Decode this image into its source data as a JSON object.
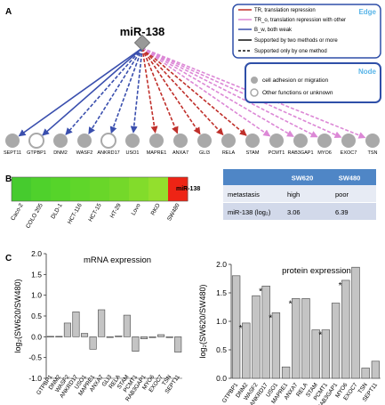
{
  "panel_labels": {
    "a": "A",
    "b": "B",
    "c": "C"
  },
  "network": {
    "mirna": "miR-138",
    "targets": [
      "SEPT11",
      "GTPBP1",
      "DNM2",
      "WASF2",
      "ANKRD17",
      "USO1",
      "MAPRE1",
      "ANXA7",
      "GLI3",
      "RELA",
      "STAM",
      "PCMT1",
      "RAB3GAP1",
      "MYO6",
      "EXOC7",
      "TSN"
    ],
    "edge_types": [
      "B_w",
      "B_w",
      "B_w",
      "B_w",
      "B_w",
      "B_w",
      "TR",
      "TR",
      "TR",
      "TR",
      "TR",
      "TR_o",
      "TR_o",
      "TR_o",
      "TR_o",
      "TR_o"
    ],
    "edge_support": [
      "two",
      "two",
      "one",
      "one",
      "one",
      "one",
      "one",
      "one",
      "one",
      "one",
      "one",
      "one",
      "one",
      "one",
      "one",
      "one"
    ],
    "node_types": [
      "cell",
      "other",
      "cell",
      "cell",
      "other",
      "cell",
      "cell",
      "cell",
      "cell",
      "cell",
      "cell",
      "cell",
      "cell",
      "cell",
      "cell",
      "cell"
    ],
    "edge_legend": {
      "title": "Edge",
      "items": [
        "TR, translation repression",
        "TR_o, translation repression with other",
        "B_w, both weak",
        "Supported by two methods or more",
        "Supported only by one method"
      ]
    },
    "node_legend": {
      "title": "Node",
      "items": [
        "cell adhesion or migration",
        "Other functions or unknown"
      ]
    }
  },
  "colors": {
    "tr": "#c0302b",
    "tr_o": "#dc88d6",
    "b_w": "#3a4fae",
    "legend_border": "#2f4fa8",
    "legend_title": "#58b4e8",
    "node_gray": "#a9a9a9",
    "mirna_node": "#999999",
    "table_header": "#4f86c6",
    "bar_fill": "#c4c4c4"
  },
  "heatmap": {
    "label": "miR-138",
    "cell_lines": [
      "Caco-2",
      "COLO 205",
      "DLD-1",
      "HCT-116",
      "HCT-15",
      "HT-29",
      "Lovo",
      "RKO",
      "SW480"
    ],
    "colors": [
      "#46cb2e",
      "#4fd12c",
      "#56d42a",
      "#5fd62a",
      "#69d629",
      "#74d82a",
      "#82dc2b",
      "#93df2d",
      "#ee2415"
    ]
  },
  "table": {
    "header": [
      "",
      "SW620",
      "SW480"
    ],
    "rows": [
      [
        "metastasis",
        "high",
        "poor"
      ],
      [
        "miR-138 (log₂)",
        "3.06",
        "6.39"
      ]
    ]
  },
  "chart_data": [
    {
      "type": "bar",
      "title": "mRNA expression",
      "ylabel": "log₂(SW620/SW480)",
      "ylim": [
        -1.0,
        2.0
      ],
      "yticks": [
        "-1.0",
        "-0.5",
        "0.0",
        "0.5",
        "1.0",
        "1.5",
        "2.0"
      ],
      "categories": [
        "GTPBP1",
        "DNM2",
        "WASF2",
        "ANKRD17",
        "USO1",
        "MAPRE1",
        "ANXA7",
        "GLI3",
        "RELA",
        "STAM",
        "PCMT1",
        "RAB3GAP1",
        "MYO6",
        "EXOC7",
        "TSN",
        "SEPT11"
      ],
      "values": [
        0.01,
        0.01,
        0.33,
        0.6,
        0.08,
        -0.3,
        0.65,
        0.0,
        0.02,
        0.52,
        -0.35,
        -0.05,
        -0.02,
        0.05,
        -0.02,
        -0.37
      ],
      "asterisks": []
    },
    {
      "type": "bar",
      "title": "protein expression",
      "ylabel": "log₂(SW620/SW480)",
      "ylim": [
        0.0,
        2.0
      ],
      "yticks": [
        "0.0",
        "0.5",
        "1.0",
        "1.5",
        "2.0"
      ],
      "categories": [
        "GTPBP1",
        "DNM2",
        "WASF2",
        "ANKRD17",
        "USO1",
        "MAPRE1",
        "ANXA7",
        "RELA",
        "STAM",
        "PCMT1",
        "RAB3GAP1",
        "MYO6",
        "EXOC7",
        "TSN",
        "SEPT11"
      ],
      "values": [
        1.8,
        0.97,
        1.45,
        1.62,
        1.15,
        0.2,
        1.4,
        1.4,
        0.85,
        0.85,
        1.32,
        1.72,
        1.95,
        0.18,
        0.3
      ],
      "asterisks": [
        "",
        "*",
        "",
        "*",
        "*",
        "",
        "*",
        "",
        "",
        "*",
        "",
        "*",
        "",
        "",
        ""
      ],
      "asterisk_mark": "*"
    }
  ]
}
